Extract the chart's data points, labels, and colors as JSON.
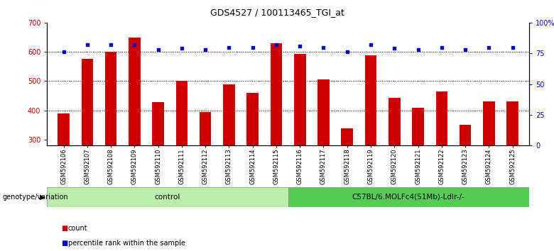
{
  "title": "GDS4527 / 100113465_TGI_at",
  "samples": [
    "GSM592106",
    "GSM592107",
    "GSM592108",
    "GSM592109",
    "GSM592110",
    "GSM592111",
    "GSM592112",
    "GSM592113",
    "GSM592114",
    "GSM592115",
    "GSM592116",
    "GSM592117",
    "GSM592118",
    "GSM592119",
    "GSM592120",
    "GSM592121",
    "GSM592122",
    "GSM592123",
    "GSM592124",
    "GSM592125"
  ],
  "counts": [
    390,
    575,
    600,
    648,
    428,
    502,
    395,
    490,
    460,
    630,
    592,
    505,
    340,
    588,
    443,
    410,
    465,
    350,
    430,
    432
  ],
  "percentile_ranks": [
    76,
    82,
    82,
    82,
    78,
    79,
    78,
    80,
    80,
    82,
    81,
    80,
    76,
    82,
    79,
    78,
    80,
    78,
    80,
    80
  ],
  "ylim_left": [
    280,
    700
  ],
  "ylim_right": [
    0,
    100
  ],
  "yticks_left": [
    300,
    400,
    500,
    600,
    700
  ],
  "yticks_right": [
    0,
    25,
    50,
    75,
    100
  ],
  "ytick_labels_right": [
    "0",
    "25",
    "50",
    "75",
    "100%"
  ],
  "bar_color": "#cc0000",
  "dot_color": "#0000cc",
  "grid_color": "#000000",
  "bg_color": "#ffffff",
  "plot_bg_color": "#ffffff",
  "tick_label_color_left": "#cc0000",
  "tick_label_color_right": "#0000cc",
  "group1_label": "control",
  "group2_label": "C57BL/6.MOLFc4(51Mb)-Ldlr-/-",
  "group1_count": 10,
  "group2_count": 10,
  "group1_color": "#bbeeaa",
  "group2_color": "#55cc55",
  "legend_count_label": "count",
  "legend_pct_label": "percentile rank within the sample",
  "bar_width": 0.5,
  "genotype_label": "genotype/variation"
}
